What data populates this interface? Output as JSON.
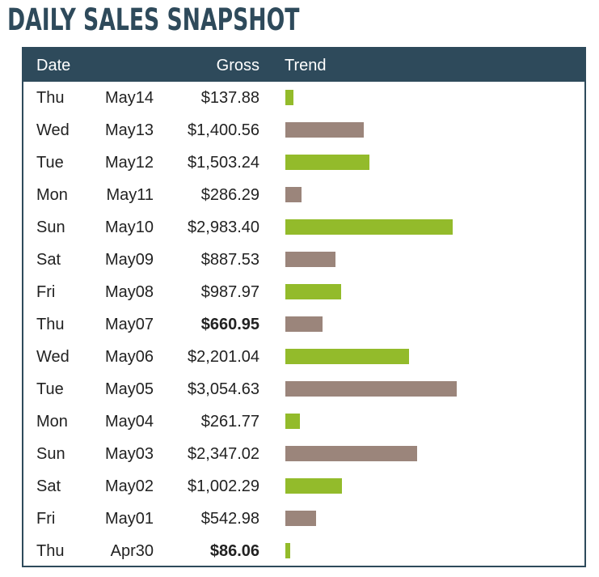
{
  "page": {
    "title": "DAILY SALES SNAPSHOT"
  },
  "colors": {
    "header_bg": "#2e4a5b",
    "bar_green": "#93bb2b",
    "bar_brown": "#9b857b"
  },
  "table": {
    "headers": {
      "date": "Date",
      "gross": "Gross",
      "trend": "Trend"
    },
    "rows": [
      {
        "day": "Thu",
        "date": "May14",
        "gross": "$137.88",
        "bold": false,
        "color": "green"
      },
      {
        "day": "Wed",
        "date": "May13",
        "gross": "$1,400.56",
        "bold": false,
        "color": "brown"
      },
      {
        "day": "Tue",
        "date": "May12",
        "gross": "$1,503.24",
        "bold": false,
        "color": "green"
      },
      {
        "day": "Mon",
        "date": "May11",
        "gross": "$286.29",
        "bold": false,
        "color": "brown"
      },
      {
        "day": "Sun",
        "date": "May10",
        "gross": "$2,983.40",
        "bold": false,
        "color": "green"
      },
      {
        "day": "Sat",
        "date": "May09",
        "gross": "$887.53",
        "bold": false,
        "color": "brown"
      },
      {
        "day": "Fri",
        "date": "May08",
        "gross": "$987.97",
        "bold": false,
        "color": "green"
      },
      {
        "day": "Thu",
        "date": "May07",
        "gross": "$660.95",
        "bold": true,
        "color": "brown"
      },
      {
        "day": "Wed",
        "date": "May06",
        "gross": "$2,201.04",
        "bold": false,
        "color": "green"
      },
      {
        "day": "Tue",
        "date": "May05",
        "gross": "$3,054.63",
        "bold": false,
        "color": "brown"
      },
      {
        "day": "Mon",
        "date": "May04",
        "gross": "$261.77",
        "bold": false,
        "color": "green"
      },
      {
        "day": "Sun",
        "date": "May03",
        "gross": "$2,347.02",
        "bold": false,
        "color": "brown"
      },
      {
        "day": "Sat",
        "date": "May02",
        "gross": "$1,002.29",
        "bold": false,
        "color": "green"
      },
      {
        "day": "Fri",
        "date": "May01",
        "gross": "$542.98",
        "bold": false,
        "color": "brown"
      },
      {
        "day": "Thu",
        "date": "Apr30",
        "gross": "$86.06",
        "bold": true,
        "color": "green"
      }
    ]
  },
  "chart_data": {
    "type": "bar",
    "orientation": "horizontal",
    "title": "DAILY SALES SNAPSHOT",
    "categories": [
      "Thu May14",
      "Wed May13",
      "Tue May12",
      "Mon May11",
      "Sun May10",
      "Sat May09",
      "Fri May08",
      "Thu May07",
      "Wed May06",
      "Tue May05",
      "Mon May04",
      "Sun May03",
      "Sat May02",
      "Fri May01",
      "Thu Apr30"
    ],
    "values": [
      137.88,
      1400.56,
      1503.24,
      286.29,
      2983.4,
      887.53,
      987.97,
      660.95,
      2201.04,
      3054.63,
      261.77,
      2347.02,
      1002.29,
      542.98,
      86.06
    ],
    "xlim": [
      0,
      3054.63
    ],
    "grid": false,
    "legend": "none"
  }
}
